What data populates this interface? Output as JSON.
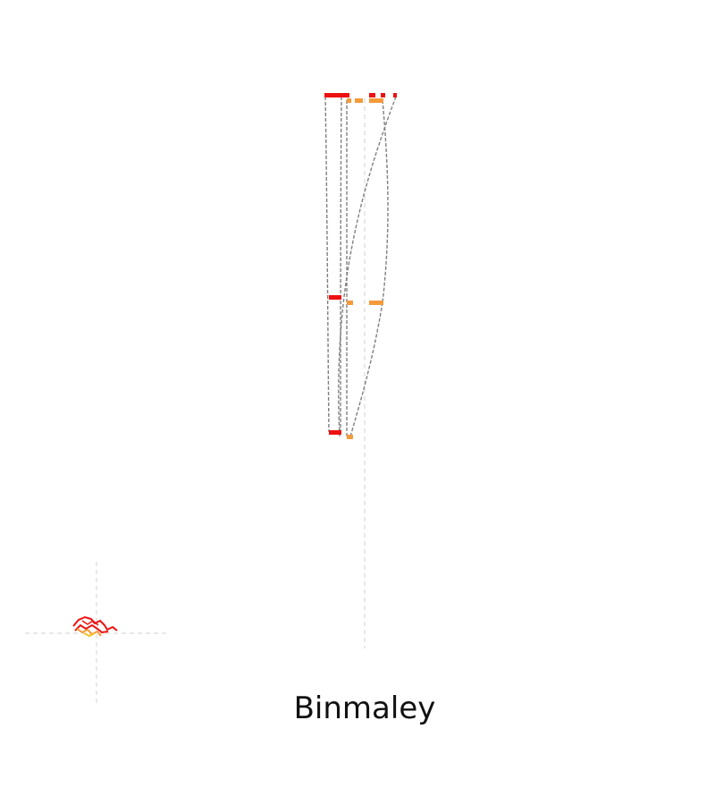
{
  "title": "Binmaley",
  "colors": {
    "primary": "#ee1111",
    "secondary": "#f59a3a",
    "link": "#808080",
    "guide": "#d0d0d0"
  }
}
